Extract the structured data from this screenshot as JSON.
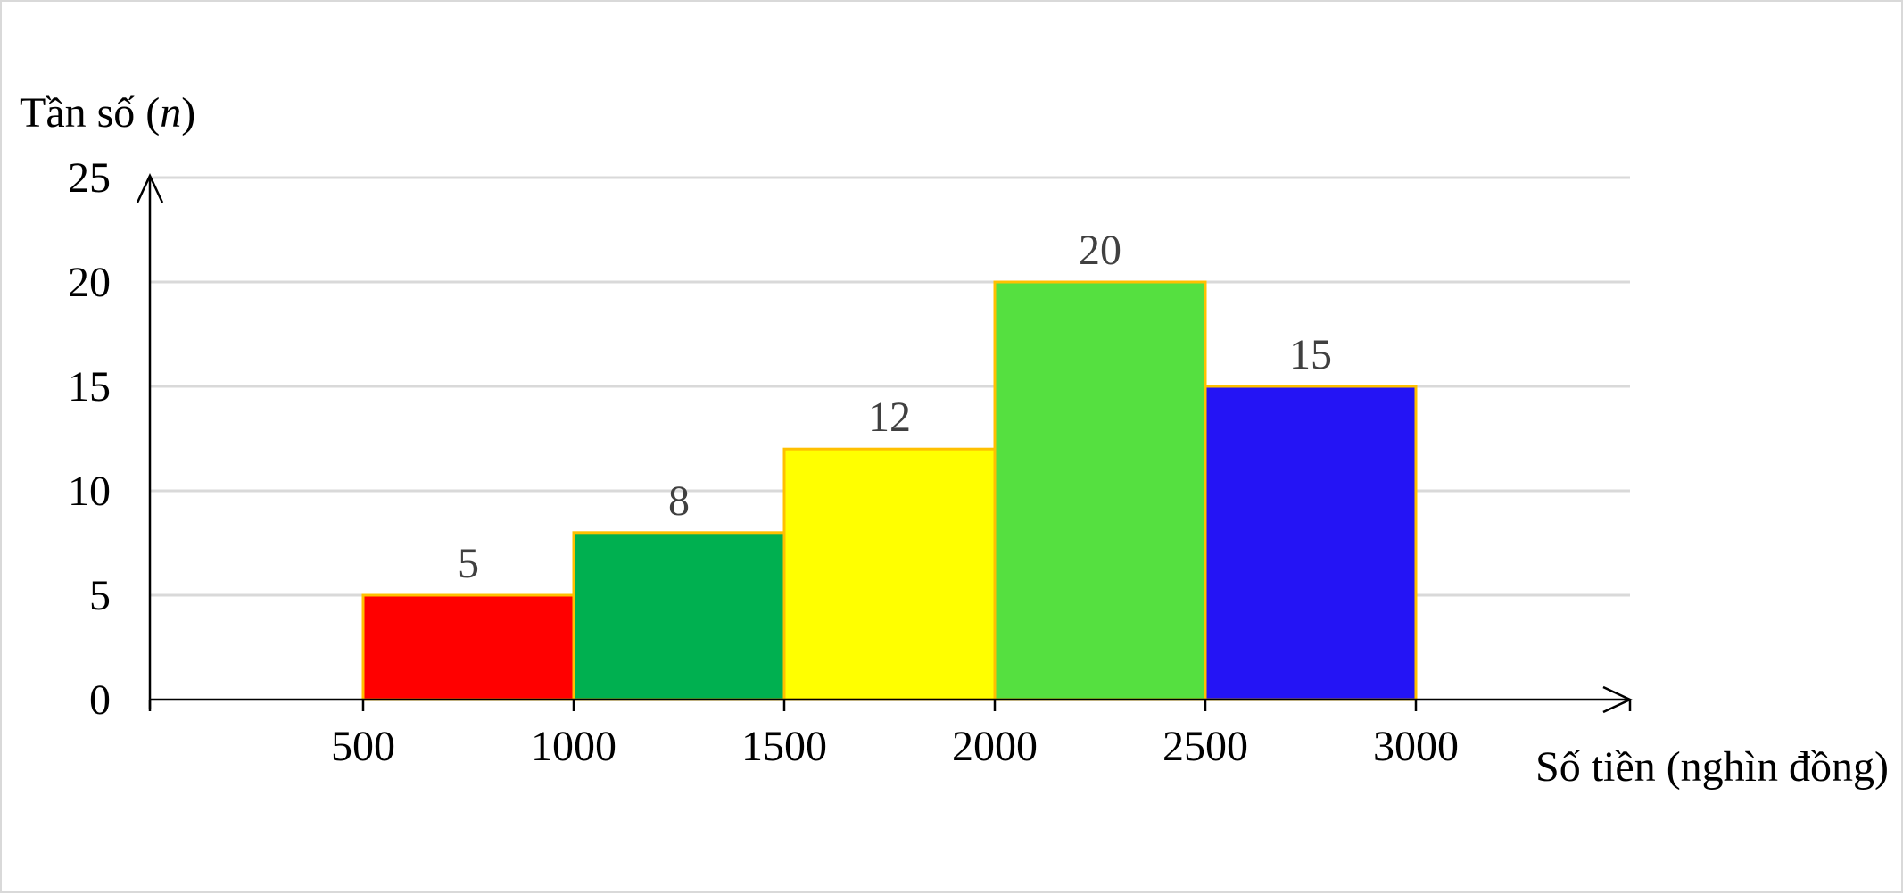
{
  "chart_data": {
    "type": "bar",
    "histogram": true,
    "ylabel_prefix": "Tần số (",
    "ylabel_var": "n",
    "ylabel_suffix": ")",
    "xlabel": "Số tiền (nghìn đồng)",
    "x_ticks": [
      "500",
      "1000",
      "1500",
      "2000",
      "2500",
      "3000"
    ],
    "y_ticks": [
      "0",
      "5",
      "10",
      "15",
      "20",
      "25"
    ],
    "ylim": [
      0,
      25
    ],
    "grid": true,
    "bins": [
      {
        "from": 500,
        "to": 1000,
        "value": 5,
        "label": "5",
        "color": "#ff0000"
      },
      {
        "from": 1000,
        "to": 1500,
        "value": 8,
        "label": "8",
        "color": "#00b050"
      },
      {
        "from": 1500,
        "to": 2000,
        "value": 12,
        "label": "12",
        "color": "#ffff00"
      },
      {
        "from": 2000,
        "to": 2500,
        "value": 20,
        "label": "20",
        "color": "#55e040"
      },
      {
        "from": 2500,
        "to": 3000,
        "value": 15,
        "label": "15",
        "color": "#2414f5"
      }
    ],
    "bar_outline_color": "#ffc000"
  }
}
